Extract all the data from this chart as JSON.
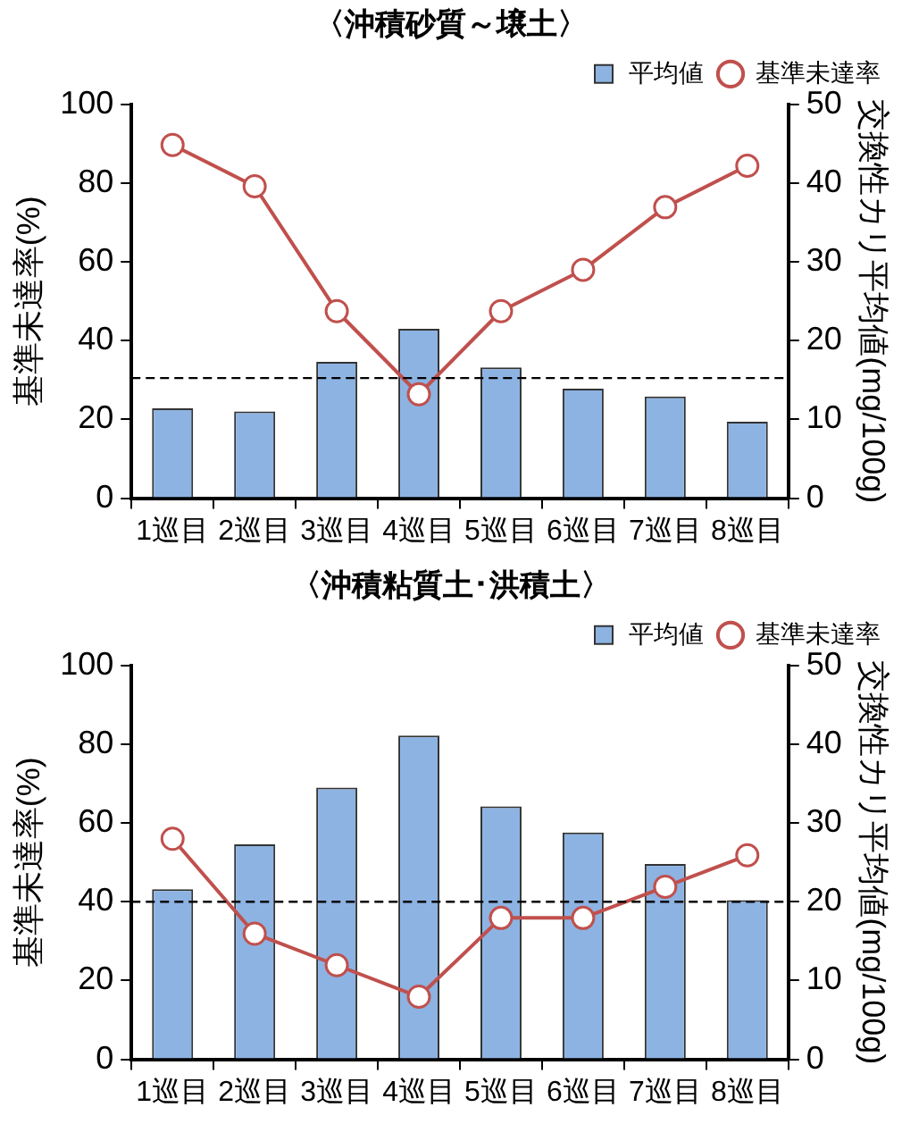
{
  "chart_data": [
    {
      "type": "bar",
      "title": "〈沖積砂質～壌土〉",
      "categories": [
        "1巡目",
        "2巡目",
        "3巡目",
        "4巡目",
        "5巡目",
        "6巡目",
        "7巡目",
        "8巡目"
      ],
      "ylabel": "基準未達率(%)",
      "y2label": "交換性カリ平均値(mg/100g)",
      "series": [
        {
          "name": "平均値",
          "axis": "y2",
          "color": "#8db3e2",
          "values": [
            11.4,
            11.0,
            17.3,
            21.5,
            16.6,
            13.9,
            12.9,
            9.7
          ]
        },
        {
          "name": "基準未達率",
          "type": "line",
          "color": "#c0504d",
          "values": [
            89.7,
            79.2,
            47.5,
            26.4,
            47.5,
            58.0,
            73.9,
            84.4
          ]
        }
      ],
      "ylim": [
        0,
        100
      ],
      "yticks": [
        0,
        20,
        40,
        60,
        80,
        100
      ],
      "y2lim": [
        0,
        50
      ],
      "y2ticks": [
        0,
        10,
        20,
        30,
        40,
        50
      ],
      "ref_lines": [
        {
          "axis": "y",
          "value": 30.5,
          "line_style": "dashed",
          "color": "#000000"
        }
      ],
      "marker": "circle",
      "legend": "top right"
    },
    {
      "type": "bar",
      "title": "〈沖積粘質土･洪積土〉",
      "categories": [
        "1巡目",
        "2巡目",
        "3巡目",
        "4巡目",
        "5巡目",
        "6巡目",
        "7巡目",
        "8巡目"
      ],
      "ylabel": "基準未達率(%)",
      "y2label": "交換性カリ平均値(mg/100g)",
      "series": [
        {
          "name": "平均値",
          "axis": "y2",
          "color": "#8db3e2",
          "values": [
            21.6,
            27.3,
            34.5,
            41.1,
            32.1,
            28.8,
            24.8,
            20.2
          ]
        },
        {
          "name": "基準未達率",
          "type": "line",
          "color": "#c0504d",
          "values": [
            56.0,
            31.9,
            23.9,
            15.9,
            35.9,
            35.9,
            43.8,
            51.8
          ]
        }
      ],
      "ylim": [
        0,
        100
      ],
      "yticks": [
        0,
        20,
        40,
        60,
        80,
        100
      ],
      "y2lim": [
        0,
        50
      ],
      "y2ticks": [
        0,
        10,
        20,
        30,
        40,
        50
      ],
      "ref_lines": [
        {
          "axis": "y",
          "value": 40,
          "line_style": "dashed",
          "color": "#000000"
        }
      ],
      "marker": "circle",
      "legend": "top right"
    }
  ]
}
